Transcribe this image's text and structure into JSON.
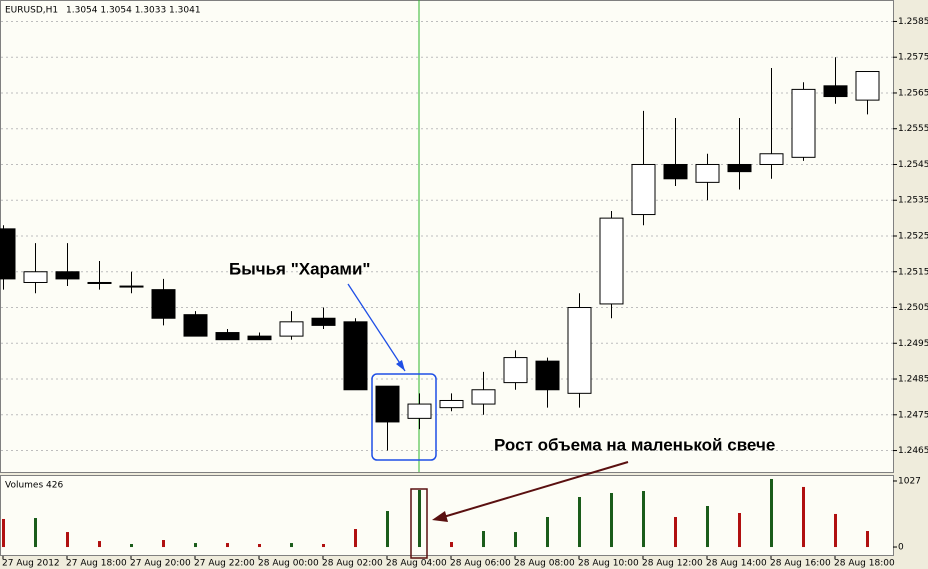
{
  "chart_data": [
    {
      "type": "candlestick",
      "title": "EURUSD,H1",
      "subtitle": "1.3054 1.3054 1.3033 1.3041",
      "open": [
        1.2527,
        1.2512,
        1.2515,
        1.2512,
        1.2511,
        1.251,
        1.2503,
        1.2498,
        1.2497,
        1.2497,
        1.2502,
        1.2501,
        1.2483,
        1.2474,
        1.2477,
        1.2478,
        1.2484,
        1.249,
        1.2481,
        1.2506,
        1.2531,
        1.2545,
        1.254,
        1.2545,
        1.2545,
        1.2547,
        1.2567,
        1.2563
      ],
      "high": [
        1.2528,
        1.2523,
        1.2523,
        1.2518,
        1.2515,
        1.2513,
        1.2504,
        1.2499,
        1.2498,
        1.2504,
        1.2505,
        1.2502,
        1.2483,
        1.2481,
        1.2481,
        1.2487,
        1.2493,
        1.2491,
        1.2509,
        1.2532,
        1.256,
        1.2558,
        1.2548,
        1.2558,
        1.2572,
        1.2568,
        1.2575,
        1.2571
      ],
      "low": [
        1.251,
        1.2509,
        1.2511,
        1.251,
        1.2509,
        1.25,
        1.2497,
        1.2496,
        1.2496,
        1.2496,
        1.2499,
        1.2482,
        1.2465,
        1.2471,
        1.2476,
        1.2475,
        1.2482,
        1.2477,
        1.2477,
        1.2502,
        1.2528,
        1.2539,
        1.2535,
        1.2538,
        1.2541,
        1.2546,
        1.2562,
        1.2559
      ],
      "close": [
        1.2513,
        1.2515,
        1.2513,
        1.2512,
        1.2511,
        1.2502,
        1.2497,
        1.2496,
        1.2496,
        1.2501,
        1.25,
        1.2482,
        1.2473,
        1.2478,
        1.2479,
        1.2482,
        1.2491,
        1.2482,
        1.2505,
        1.253,
        1.2545,
        1.2541,
        1.2545,
        1.2543,
        1.2548,
        1.2566,
        1.2564,
        1.2571
      ],
      "up_color": "#ffffff",
      "down_color": "#000000",
      "ylim": [
        1.2459,
        1.2591
      ],
      "yticks": [
        1.2465,
        1.2475,
        1.2485,
        1.2495,
        1.2505,
        1.2515,
        1.2525,
        1.2535,
        1.2545,
        1.2555,
        1.2565,
        1.2575,
        1.2585
      ],
      "grid": true,
      "annotations": [
        {
          "text": "Бычья \"Харами\"",
          "color": "#1f4fe6"
        },
        {
          "text": "Рост объема на маленькой свече",
          "color": "#5a1010"
        }
      ]
    },
    {
      "type": "bar",
      "title": "Volumes 426",
      "categories": [
        "27 Aug 2012",
        null,
        "27 Aug 18:00",
        null,
        "27 Aug 20:00",
        null,
        "27 Aug 22:00",
        null,
        "28 Aug 00:00",
        null,
        "28 Aug 02:00",
        null,
        "28 Aug 04:00",
        null,
        "28 Aug 06:00",
        null,
        "28 Aug 08:00",
        null,
        "28 Aug 10:00",
        null,
        "28 Aug 12:00",
        null,
        "28 Aug 14:00",
        null,
        "28 Aug 16:00",
        null,
        "28 Aug 18:00",
        null
      ],
      "values": [
        436,
        451,
        233,
        93,
        47,
        109,
        62,
        62,
        47,
        62,
        47,
        280,
        560,
        887,
        78,
        249,
        233,
        467,
        778,
        840,
        871,
        467,
        638,
        529,
        1058,
        934,
        514,
        249
      ],
      "colors": [
        "#b01010",
        "#1a5c1a",
        "#b01010",
        "#b01010",
        "#1a5c1a",
        "#b01010",
        "#1a5c1a",
        "#b01010",
        "#b01010",
        "#1a5c1a",
        "#b01010",
        "#b01010",
        "#1a5c1a",
        "#1a5c1a",
        "#b01010",
        "#1a5c1a",
        "#1a5c1a",
        "#1a5c1a",
        "#1a5c1a",
        "#1a5c1a",
        "#1a5c1a",
        "#b01010",
        "#1a5c1a",
        "#b01010",
        "#1a5c1a",
        "#b01010",
        "#b01010",
        "#b01010"
      ],
      "ylim": [
        -124,
        1120
      ],
      "yticks": [
        0,
        1027
      ]
    }
  ]
}
